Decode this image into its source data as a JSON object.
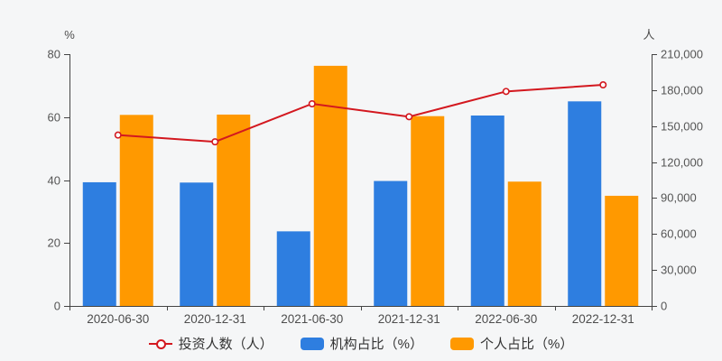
{
  "chart_data": {
    "type": "bar",
    "subtype": "dual-axis-combo-bar-line",
    "title": "",
    "categories": [
      "2020-06-30",
      "2020-12-31",
      "2021-06-30",
      "2021-12-31",
      "2022-06-30",
      "2022-12-31"
    ],
    "series": [
      {
        "name": "投资人数（人）",
        "type": "line",
        "axis": "right",
        "color": "#d3181f",
        "marker": "hollow-circle",
        "values": [
          142500,
          136900,
          168600,
          157800,
          178900,
          184400
        ]
      },
      {
        "name": "机构占比（%）",
        "type": "bar",
        "axis": "left",
        "color": "#2e7ee0",
        "values": [
          39.3,
          39.2,
          23.7,
          39.7,
          60.5,
          65.0
        ]
      },
      {
        "name": "个人占比（%）",
        "type": "bar",
        "axis": "left",
        "color": "#ff9900",
        "values": [
          60.7,
          60.8,
          76.3,
          60.3,
          39.5,
          35.0
        ]
      }
    ],
    "left_axis": {
      "unit_label": "%",
      "min": 0,
      "max": 80,
      "ticks": [
        0,
        20,
        40,
        60,
        80
      ],
      "tick_labels": [
        "0",
        "20",
        "40",
        "60",
        "80"
      ]
    },
    "right_axis": {
      "unit_label": "人",
      "min": 0,
      "max": 210000,
      "ticks": [
        0,
        30000,
        60000,
        90000,
        120000,
        150000,
        180000,
        210000
      ],
      "tick_labels": [
        "0",
        "30,000",
        "60,000",
        "90,000",
        "120,000",
        "150,000",
        "180,000",
        "210,000"
      ]
    },
    "legend_position": "bottom",
    "grid": false,
    "style": {
      "background": "#f5f6f7",
      "axis_line_color": "#444444",
      "tick_text_color": "#555555",
      "category_text_color": "#4d4d4d",
      "legend_text_color": "#333333",
      "bar_blue": "#2e7ee0",
      "bar_orange": "#ff9900",
      "line_red": "#d3181f"
    }
  }
}
